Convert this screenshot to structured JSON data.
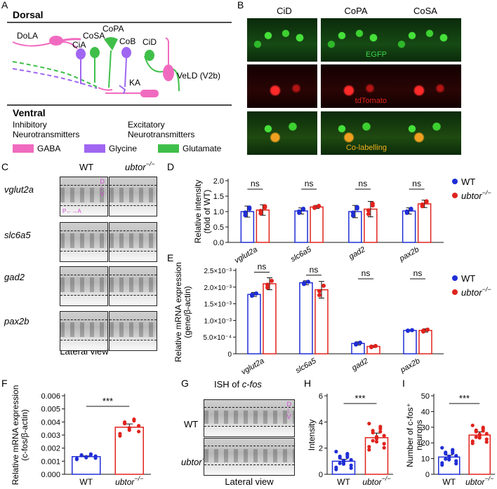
{
  "panels": {
    "A": "A",
    "B": "B",
    "C": "C",
    "D": "D",
    "E": "E",
    "F": "F",
    "G": "G",
    "H": "H",
    "I": "I"
  },
  "panelA": {
    "dorsal": "Dorsal",
    "ventral": "Ventral",
    "cells": {
      "dola": "DoLA",
      "cia": "CiA",
      "cosa": "CoSA",
      "copa": "CoPA",
      "cob": "CoB",
      "cid": "CiD",
      "veld": "VeLD (V2b)",
      "ka": "KA"
    },
    "inhibitory": "Inhibitory",
    "excitatory": "Excitatory",
    "neurotransmitters": "Neurotransmitters",
    "legend": [
      {
        "label": "GABA",
        "color": "#f06bbf"
      },
      {
        "label": "Glycine",
        "color": "#a066f2"
      },
      {
        "label": "Glutamate",
        "color": "#3fbf4a"
      }
    ]
  },
  "panelB": {
    "columns": [
      "CiD",
      "CoPA",
      "CoSA"
    ],
    "rows": [
      {
        "label": "EGFP",
        "color": "#3fd44a"
      },
      {
        "label": "tdTomato",
        "color": "#e0241f"
      },
      {
        "label": "Co-labelling",
        "color": "#f0b020"
      }
    ]
  },
  "panelC": {
    "wt": "WT",
    "mut": "ubtor",
    "sup": "−/−",
    "genes": [
      "vglut2a",
      "slc6a5",
      "gad2",
      "pax2b"
    ],
    "axis_dv": [
      "D",
      "V"
    ],
    "axis_pa": "P←→A",
    "footer": "Lateral view"
  },
  "colors": {
    "wt": "#1f2ed6",
    "mut": "#e0231d"
  },
  "chart_D": {
    "type": "bar",
    "ylabel": [
      "Relative intensity",
      "(fold of WT)"
    ],
    "ylim": [
      0,
      2.0
    ],
    "yticks": [
      "0.0",
      "0.5",
      "1.0",
      "1.5",
      "2.0"
    ],
    "categories": [
      "vglut2a",
      "slc6a5",
      "gad2",
      "pax2b"
    ],
    "sig": [
      "ns",
      "ns",
      "ns",
      "ns"
    ],
    "series": [
      {
        "name": "WT",
        "values": [
          1.0,
          1.02,
          1.0,
          1.02
        ],
        "errors": [
          0.18,
          0.1,
          0.2,
          0.1
        ]
      },
      {
        "name": "ubtor−/−",
        "values": [
          1.05,
          1.15,
          1.08,
          1.25
        ],
        "errors": [
          0.17,
          0.05,
          0.25,
          0.12
        ]
      }
    ]
  },
  "chart_E": {
    "type": "bar",
    "ylabel": [
      "Relative mRNA expression",
      "(gene/β-actin)"
    ],
    "ylim": [
      0,
      0.0025
    ],
    "yticks": [
      "0",
      "5.0×10⁻⁴",
      "1.0×10⁻³",
      "1.5×10⁻³",
      "2.0×10⁻³",
      "2.5×10⁻³"
    ],
    "categories": [
      "vglut2a",
      "slc6a5",
      "gad2",
      "pax2b"
    ],
    "sig": [
      "ns",
      "ns",
      "ns",
      "ns"
    ],
    "series": [
      {
        "name": "WT",
        "values": [
          0.00178,
          0.00213,
          0.00031,
          0.0007
        ],
        "errors": [
          6e-05,
          6e-05,
          5e-05,
          2e-05
        ]
      },
      {
        "name": "ubtor−/−",
        "values": [
          0.0021,
          0.00192,
          0.00022,
          0.0007
        ],
        "errors": [
          0.00018,
          0.00025,
          3e-05,
          5e-05
        ]
      }
    ]
  },
  "chart_F": {
    "type": "bar",
    "ylabel": [
      "Relative mRNA expression",
      "(c-fos/β-actin)"
    ],
    "ylim": [
      0,
      0.006
    ],
    "yticks": [
      "0.000",
      "0.001",
      "0.002",
      "0.003",
      "0.004",
      "0.005",
      "0.006"
    ],
    "categories": [
      "WT",
      "ubtor−/−"
    ],
    "values": [
      0.00135,
      0.0036
    ],
    "errors": [
      5e-05,
      0.00025
    ],
    "sig": "***"
  },
  "panelG": {
    "title_prefix": "ISH of ",
    "title_gene": "c-fos",
    "wt": "WT",
    "mut": "ubtor",
    "sup": "−/−",
    "footer": "Lateral view"
  },
  "chart_H": {
    "type": "bar",
    "ylabel": "Intensity",
    "ylim": [
      0,
      6
    ],
    "yticks": [
      "0",
      "2",
      "4",
      "6"
    ],
    "categories": [
      "WT",
      "ubtor−/−"
    ],
    "values": [
      1.0,
      2.8
    ],
    "errors": [
      0.15,
      0.35
    ],
    "sig": "***"
  },
  "chart_I": {
    "type": "bar",
    "ylabel": [
      "Number of c-fos⁺",
      "neurons"
    ],
    "ylim": [
      0,
      50
    ],
    "yticks": [
      "0",
      "10",
      "20",
      "30",
      "40",
      "50"
    ],
    "categories": [
      "WT",
      "ubtor−/−"
    ],
    "values": [
      11,
      25
    ],
    "errors": [
      1.2,
      2
    ],
    "sig": "***"
  }
}
